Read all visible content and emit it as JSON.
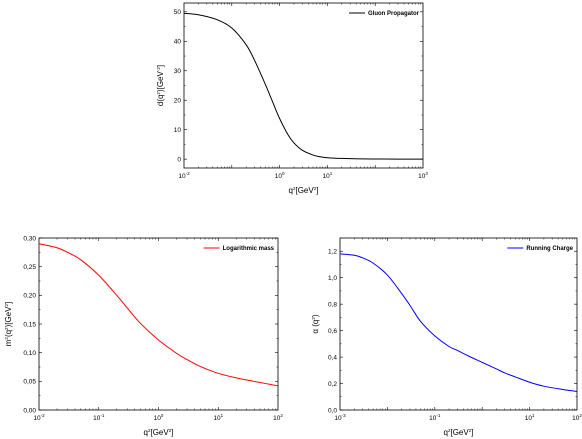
{
  "chart_data": [
    {
      "type": "line",
      "xscale": "log",
      "xlim": [
        0.01,
        1000
      ],
      "ylim": [
        -3,
        53
      ],
      "xticks": [
        {
          "base": "10",
          "exp": "-2",
          "value": 0.01
        },
        {
          "base": "10",
          "exp": "0",
          "value": 1
        },
        {
          "base": "10",
          "exp": "1",
          "value": 10
        },
        {
          "base": "10",
          "exp": "3",
          "value": 1000
        }
      ],
      "yticks": [
        "0",
        "10",
        "20",
        "30",
        "40",
        "50"
      ],
      "ytick_values": [
        0,
        10,
        20,
        30,
        40,
        50
      ],
      "xlabel": {
        "main": "q",
        "sup": "2",
        "rest": "[GeV",
        "sup2": "2",
        "end": "]"
      },
      "ylabel": {
        "main": "d(q",
        "sup": "2",
        "rest": ")[GeV",
        "sup2": "-2",
        "end": "]"
      },
      "grid": false,
      "legend_position": "top-right",
      "series": [
        {
          "name": "Gluon Propagator",
          "color": "#000000",
          "x": [
            0.01,
            0.02,
            0.05,
            0.1,
            0.2,
            0.3,
            0.5,
            0.7,
            1,
            1.5,
            2,
            3,
            5,
            7,
            10,
            20,
            50,
            100,
            1000
          ],
          "y": [
            49.5,
            49.0,
            47.3,
            44.5,
            38.8,
            33.5,
            25.5,
            19.8,
            13.8,
            8.3,
            5.5,
            3.0,
            1.4,
            0.8,
            0.5,
            0.25,
            0.1,
            0.05,
            0.0
          ]
        }
      ]
    },
    {
      "type": "line",
      "xscale": "log",
      "xlim": [
        0.01,
        100
      ],
      "ylim": [
        0,
        0.3
      ],
      "xticks": [
        {
          "base": "10",
          "exp": "-2",
          "value": 0.01
        },
        {
          "base": "10",
          "exp": "-1",
          "value": 0.1
        },
        {
          "base": "10",
          "exp": "0",
          "value": 1
        },
        {
          "base": "10",
          "exp": "1",
          "value": 10
        },
        {
          "base": "10",
          "exp": "2",
          "value": 100
        }
      ],
      "yticks": [
        "0,00",
        "0,05",
        "0,10",
        "0,15",
        "0,20",
        "0,25",
        "0,30"
      ],
      "ytick_values": [
        0,
        0.05,
        0.1,
        0.15,
        0.2,
        0.25,
        0.3
      ],
      "xlabel": {
        "main": "q",
        "sup": "2",
        "rest": "[GeV",
        "sup2": "2",
        "end": "]"
      },
      "ylabel": {
        "main": "m",
        "sup": "2",
        "rest": "(q",
        "sup2": "2",
        "end": ")[GeV",
        "sup3": "2",
        "end2": "]"
      },
      "grid": false,
      "legend_position": "top-right",
      "series": [
        {
          "name": "Logarithmic mass",
          "color": "#ff0000",
          "x": [
            0.01,
            0.02,
            0.03,
            0.05,
            0.1,
            0.2,
            0.3,
            0.5,
            1,
            2,
            3,
            5,
            10,
            20,
            50,
            100
          ],
          "y": [
            0.29,
            0.283,
            0.275,
            0.262,
            0.235,
            0.2,
            0.178,
            0.151,
            0.122,
            0.099,
            0.088,
            0.076,
            0.064,
            0.056,
            0.048,
            0.042
          ]
        }
      ]
    },
    {
      "type": "line",
      "xscale": "log",
      "xlim": [
        0.001,
        100
      ],
      "ylim": [
        0,
        1.3
      ],
      "xticks": [
        {
          "base": "10",
          "exp": "-3",
          "value": 0.001
        },
        {
          "base": "10",
          "exp": "-1",
          "value": 0.1
        },
        {
          "base": "10",
          "exp": "1",
          "value": 10
        },
        {
          "base": "10",
          "exp": "2",
          "value": 100
        }
      ],
      "yticks": [
        "0,0",
        "0,2",
        "0,4",
        "0,6",
        "0,8",
        "1,0",
        "1,2"
      ],
      "ytick_values": [
        0,
        0.2,
        0.4,
        0.6,
        0.8,
        1.0,
        1.2
      ],
      "xlabel": {
        "main": "q",
        "sup": "2",
        "rest": "[GeV",
        "sup2": "2",
        "end": "]"
      },
      "ylabel": {
        "main": "α (q",
        "sup": "2",
        "end": ")"
      },
      "grid": false,
      "legend_position": "top-right",
      "series": [
        {
          "name": "Running Charge",
          "color": "#0000ff",
          "x": [
            0.001,
            0.002,
            0.003,
            0.005,
            0.01,
            0.02,
            0.03,
            0.05,
            0.1,
            0.2,
            0.3,
            0.5,
            1,
            2,
            3,
            5,
            10,
            20,
            50,
            100
          ],
          "y": [
            1.18,
            1.17,
            1.15,
            1.11,
            1.02,
            0.88,
            0.79,
            0.67,
            0.56,
            0.48,
            0.45,
            0.41,
            0.36,
            0.31,
            0.28,
            0.25,
            0.21,
            0.18,
            0.155,
            0.14
          ]
        }
      ]
    }
  ]
}
